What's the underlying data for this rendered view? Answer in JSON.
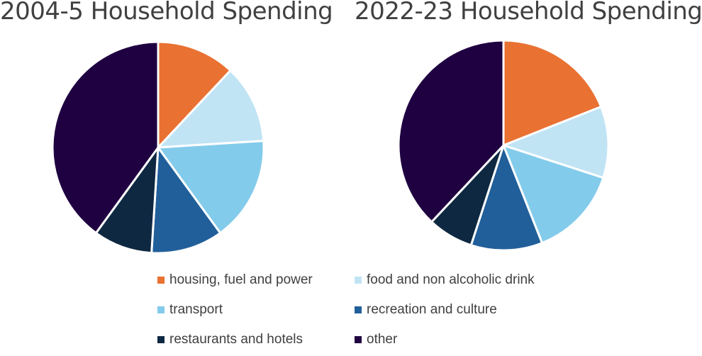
{
  "chart_data": [
    {
      "type": "pie",
      "title": "2004-5 Household Spending",
      "categories": [
        "housing, fuel and power",
        "food and non alcoholic drink",
        "transport",
        "recreation and culture",
        "restaurants and hotels",
        "other"
      ],
      "values": [
        12,
        12,
        16,
        11,
        9,
        40
      ]
    },
    {
      "type": "pie",
      "title": "2022-23 Household Spending",
      "categories": [
        "housing, fuel and power",
        "food and non alcoholic drink",
        "transport",
        "recreation and culture",
        "restaurants and hotels",
        "other"
      ],
      "values": [
        19,
        11,
        14,
        11,
        7,
        38
      ]
    }
  ],
  "legend": {
    "placement": "bottom",
    "items": [
      {
        "label": "housing, fuel and power",
        "color": "#E97132"
      },
      {
        "label": "food and non alcoholic drink",
        "color": "#C1E4F5"
      },
      {
        "label": "transport",
        "color": "#83CBEB"
      },
      {
        "label": "recreation and culture",
        "color": "#215F9A"
      },
      {
        "label": "restaurants and hotels",
        "color": "#0E2841"
      },
      {
        "label": "other",
        "color": "#1F0041"
      }
    ]
  },
  "colors": [
    "#E97132",
    "#C1E4F5",
    "#83CBEB",
    "#215F9A",
    "#0E2841",
    "#1F0041"
  ]
}
